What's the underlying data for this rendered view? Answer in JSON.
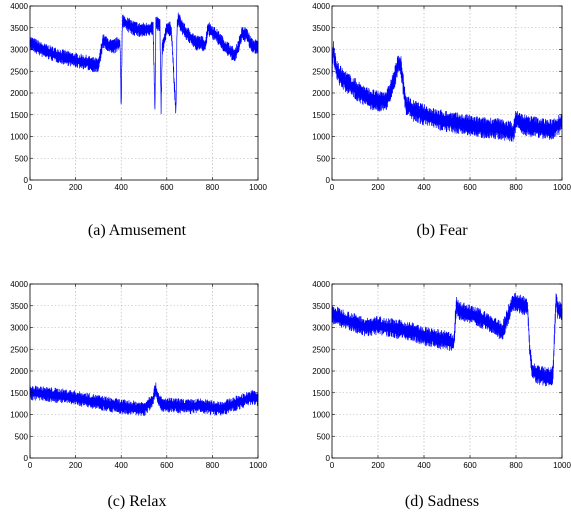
{
  "chart_data": [
    {
      "type": "line",
      "caption": "(a) Amusement",
      "xlim": [
        0,
        1000
      ],
      "ylim": [
        0,
        4000
      ],
      "xticks": [
        0,
        200,
        400,
        600,
        800,
        1000
      ],
      "yticks": [
        0,
        500,
        1000,
        1500,
        2000,
        2500,
        3000,
        3500,
        4000
      ],
      "grid": true,
      "color": "#0000ff",
      "series": [
        {
          "x": [
            0,
            50,
            100,
            150,
            200,
            250,
            300,
            320,
            330,
            360,
            395,
            400,
            405,
            410,
            420,
            450,
            480,
            510,
            540,
            548,
            552,
            560,
            570,
            575,
            580,
            600,
            620,
            640,
            645,
            650,
            680,
            700,
            730,
            750,
            770,
            780,
            800,
            830,
            850,
            880,
            900,
            930,
            950,
            970,
            1000
          ],
          "y": [
            3150,
            3000,
            2900,
            2820,
            2750,
            2700,
            2620,
            3200,
            3150,
            3050,
            3150,
            1600,
            3650,
            3650,
            3600,
            3500,
            3450,
            3450,
            3500,
            1550,
            3600,
            3600,
            3550,
            1600,
            3000,
            3500,
            3450,
            1500,
            3500,
            3700,
            3400,
            3300,
            3150,
            3150,
            3100,
            3500,
            3400,
            3250,
            3100,
            2950,
            2850,
            3350,
            3350,
            3100,
            3050
          ],
          "band": 350
        }
      ]
    },
    {
      "type": "line",
      "caption": "(b) Fear",
      "xlim": [
        0,
        1000
      ],
      "ylim": [
        0,
        4000
      ],
      "xticks": [
        0,
        200,
        400,
        600,
        800,
        1000
      ],
      "yticks": [
        0,
        500,
        1000,
        1500,
        2000,
        2500,
        3000,
        3500,
        4000
      ],
      "grid": true,
      "color": "#0000ff",
      "series": [
        {
          "x": [
            0,
            5,
            20,
            50,
            100,
            150,
            200,
            240,
            270,
            290,
            300,
            320,
            350,
            400,
            450,
            500,
            550,
            600,
            650,
            700,
            750,
            790,
            800,
            820,
            850,
            900,
            950,
            980,
            1000
          ],
          "y": [
            2500,
            3000,
            2500,
            2300,
            2100,
            1900,
            1800,
            1850,
            2300,
            2700,
            2600,
            1750,
            1600,
            1500,
            1400,
            1350,
            1300,
            1250,
            1200,
            1200,
            1150,
            1100,
            1400,
            1300,
            1250,
            1200,
            1150,
            1250,
            1350
          ],
          "band": 500
        }
      ]
    },
    {
      "type": "line",
      "caption": "(c) Relax",
      "xlim": [
        0,
        1000
      ],
      "ylim": [
        0,
        4000
      ],
      "xticks": [
        0,
        200,
        400,
        600,
        800,
        1000
      ],
      "yticks": [
        0,
        500,
        1000,
        1500,
        2000,
        2500,
        3000,
        3500,
        4000
      ],
      "grid": true,
      "color": "#0000ff",
      "series": [
        {
          "x": [
            0,
            50,
            100,
            150,
            200,
            250,
            300,
            350,
            400,
            450,
            500,
            540,
            550,
            560,
            580,
            600,
            650,
            700,
            750,
            800,
            850,
            900,
            950,
            980,
            1000
          ],
          "y": [
            1500,
            1480,
            1450,
            1420,
            1380,
            1330,
            1280,
            1230,
            1180,
            1150,
            1130,
            1350,
            1600,
            1400,
            1200,
            1220,
            1200,
            1180,
            1200,
            1150,
            1150,
            1250,
            1350,
            1400,
            1350
          ],
          "band": 350
        }
      ]
    },
    {
      "type": "line",
      "caption": "(d) Sadness",
      "xlim": [
        0,
        1000
      ],
      "ylim": [
        0,
        4000
      ],
      "xticks": [
        0,
        200,
        400,
        600,
        800,
        1000
      ],
      "yticks": [
        0,
        500,
        1000,
        1500,
        2000,
        2500,
        3000,
        3500,
        4000
      ],
      "grid": true,
      "color": "#0000ff",
      "series": [
        {
          "x": [
            0,
            50,
            100,
            150,
            200,
            250,
            300,
            350,
            400,
            450,
            500,
            530,
            540,
            550,
            600,
            650,
            700,
            740,
            760,
            780,
            800,
            830,
            850,
            860,
            870,
            900,
            950,
            960,
            975,
            980,
            1000
          ],
          "y": [
            3300,
            3200,
            3100,
            3000,
            3050,
            3000,
            2950,
            2900,
            2800,
            2750,
            2700,
            2650,
            3500,
            3400,
            3300,
            3200,
            3050,
            2900,
            3200,
            3500,
            3600,
            3500,
            3500,
            2500,
            2000,
            1900,
            1850,
            1900,
            3700,
            3400,
            3350
          ],
          "band": 450
        }
      ]
    }
  ]
}
